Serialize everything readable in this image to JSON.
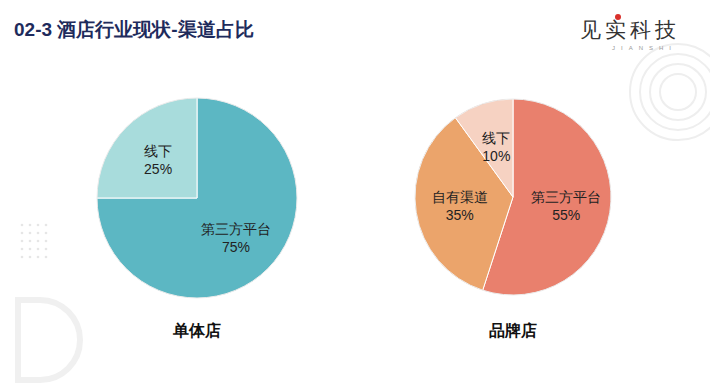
{
  "header": {
    "title": "02-3 酒店行业现状-渠道占比",
    "logo": "见实科技",
    "logo_sub": "JIANSHI"
  },
  "chart_data": [
    {
      "type": "pie",
      "title": "单体店",
      "categories": [
        "第三方平台",
        "线下"
      ],
      "values": [
        75,
        25
      ],
      "value_labels": [
        "75%",
        "25%"
      ],
      "colors": [
        "#5cb7c3",
        "#a8dcdc"
      ],
      "data_labels": true
    },
    {
      "type": "pie",
      "title": "品牌店",
      "categories": [
        "第三方平台",
        "自有渠道",
        "线下"
      ],
      "values": [
        55,
        35,
        10
      ],
      "value_labels": [
        "55%",
        "35%",
        "10%"
      ],
      "colors": [
        "#e9806d",
        "#eba46b",
        "#f6d2c2"
      ],
      "data_labels": true
    }
  ]
}
